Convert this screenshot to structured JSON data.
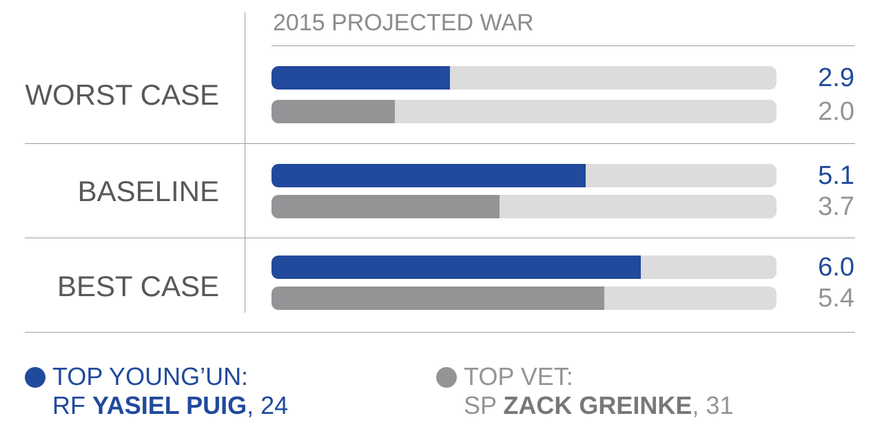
{
  "chart_data": {
    "type": "bar",
    "orientation": "horizontal",
    "title": "2015 PROJECTED WAR",
    "categories": [
      "WORST CASE",
      "BASELINE",
      "BEST CASE"
    ],
    "xlim": [
      0,
      8.2
    ],
    "series": [
      {
        "name": "TOP YOUNG'UN: RF YASIEL PUIG, 24",
        "color": "#214a9c",
        "values": [
          2.9,
          5.1,
          6.0
        ],
        "labels": [
          "2.9",
          "5.1",
          "6.0"
        ]
      },
      {
        "name": "TOP VET: SP ZACK GREINKE, 31",
        "color": "#949497",
        "values": [
          2.0,
          3.7,
          5.4
        ],
        "labels": [
          "2.0",
          "3.7",
          "5.4"
        ]
      }
    ]
  },
  "legend": {
    "young": {
      "heading": "TOP YOUNG’UN:",
      "position": "RF",
      "player": "YASIEL PUIG",
      "age": ", 24"
    },
    "vet": {
      "heading": "TOP VET:",
      "position": "SP",
      "player": "ZACK GREINKE",
      "age": ", 31"
    }
  },
  "colors": {
    "blue": "#214a9c",
    "gray": "#949497",
    "track": "#dcdcde",
    "rule": "#9d9d9f"
  }
}
